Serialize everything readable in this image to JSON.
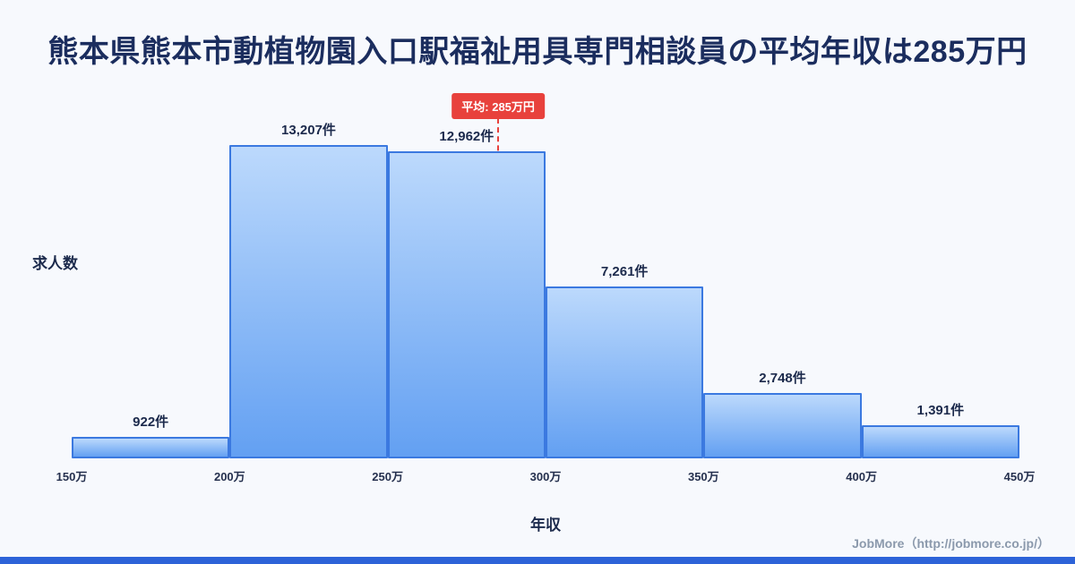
{
  "page": {
    "title": "熊本県熊本市動植物園入口駅福祉用具専門相談員の平均年収は285万円",
    "footer": "JobMore（http://jobmore.co.jp/）",
    "background_color": "#f7f9fd",
    "accent_color": "#2d63d8"
  },
  "chart_data": {
    "type": "bar",
    "title": "熊本県熊本市動植物園入口駅福祉用具専門相談員の平均年収は285万円",
    "xlabel": "年収",
    "ylabel": "求人数",
    "x_ticks": [
      "150万",
      "200万",
      "250万",
      "300万",
      "350万",
      "400万",
      "450万"
    ],
    "bin_edges_man": [
      150,
      200,
      250,
      300,
      350,
      400,
      450
    ],
    "values": [
      922,
      13207,
      12962,
      7261,
      2748,
      1391
    ],
    "value_labels": [
      "922件",
      "13,207件",
      "12,962件",
      "7,261件",
      "2,748件",
      "1,391件"
    ],
    "x_range_man": [
      150,
      450
    ],
    "ylim": [
      0,
      13207
    ],
    "grid": false,
    "legend": false,
    "average_line": {
      "value_man": 285,
      "label": "平均: 285万円",
      "color": "#e8413c"
    },
    "bar_fill_top": "#bcd9fc",
    "bar_fill_bottom": "#63a0f2",
    "bar_border": "#3b79e0"
  }
}
